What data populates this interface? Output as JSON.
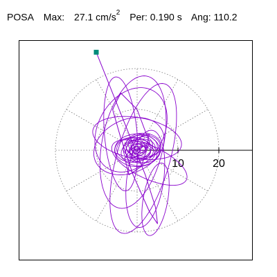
{
  "header": {
    "station": "POSA",
    "max_label": "Max:",
    "max_value": "27.1",
    "max_unit": "cm/s",
    "max_unit_exp": "2",
    "per_label": "Per:",
    "per_value": "0.190 s",
    "ang_label": "Ang:",
    "ang_value": "110.2"
  },
  "colors": {
    "trace": "#8800cc",
    "marker": "#008b7a",
    "grid": "#777777",
    "axis": "#000000"
  },
  "chart_data": {
    "type": "polar-hodogram",
    "radial_ticks": [
      10,
      20
    ],
    "radial_tick_labels": [
      "10",
      "20"
    ],
    "rings": [
      10,
      20
    ],
    "spokes_deg": [
      0,
      30,
      60,
      90,
      120,
      150,
      180,
      210,
      240,
      270,
      300,
      330
    ],
    "rmax_shown": 28.5,
    "grid": true,
    "start_point": {
      "x": -10.0,
      "y": 24.0
    },
    "trace_segments": [
      {
        "x": [
          -10.0,
          -6,
          -2,
          2,
          4.5,
          5,
          3,
          -1,
          -4,
          -6,
          -4,
          0,
          3,
          1,
          -2,
          -3,
          0,
          3,
          2,
          -1,
          -2,
          0,
          1,
          0
        ],
        "y": [
          24.0,
          14,
          4,
          -6,
          -14,
          -18,
          -15,
          -6,
          3,
          10,
          14,
          10,
          2,
          -4,
          -6,
          -2,
          3,
          4,
          0,
          -2,
          0,
          1,
          0,
          0
        ]
      }
    ],
    "loops": [
      {
        "cx": -1.0,
        "cy": 2.0,
        "rx": 7.5,
        "ry": 16.5,
        "rot": -12,
        "phase": 0.2
      },
      {
        "cx": 1.5,
        "cy": -2.0,
        "rx": 6.5,
        "ry": 19.0,
        "rot": -16,
        "phase": 1.1
      },
      {
        "cx": 0.0,
        "cy": 3.0,
        "rx": 11.0,
        "ry": 5.0,
        "rot": -10,
        "phase": 0.5
      },
      {
        "cx": -2.0,
        "cy": 1.0,
        "rx": 9.0,
        "ry": 6.5,
        "rot": 25,
        "phase": 2.0
      },
      {
        "cx": 2.0,
        "cy": -7.0,
        "rx": 4.5,
        "ry": 12.0,
        "rot": -8,
        "phase": 0.9
      },
      {
        "cx": 0.0,
        "cy": 0.0,
        "rx": 5.5,
        "ry": 4.0,
        "rot": 0,
        "phase": 0.0
      },
      {
        "cx": 0.5,
        "cy": 0.5,
        "rx": 3.5,
        "ry": 2.5,
        "rot": 30,
        "phase": 1.5
      },
      {
        "cx": -1.5,
        "cy": 5.0,
        "rx": 8.0,
        "ry": 11.0,
        "rot": -30,
        "phase": 2.7
      },
      {
        "cx": 3.0,
        "cy": -3.0,
        "rx": 10.0,
        "ry": 4.0,
        "rot": -25,
        "phase": 0.4
      },
      {
        "cx": 4.5,
        "cy": -12.0,
        "rx": 3.0,
        "ry": 9.0,
        "rot": -10,
        "phase": 1.8
      },
      {
        "cx": -4.0,
        "cy": 4.0,
        "rx": 4.0,
        "ry": 14.0,
        "rot": 5,
        "phase": 3.0
      },
      {
        "cx": 0.0,
        "cy": 0.0,
        "rx": 2.0,
        "ry": 1.5,
        "rot": 10,
        "phase": 0.7
      }
    ]
  }
}
